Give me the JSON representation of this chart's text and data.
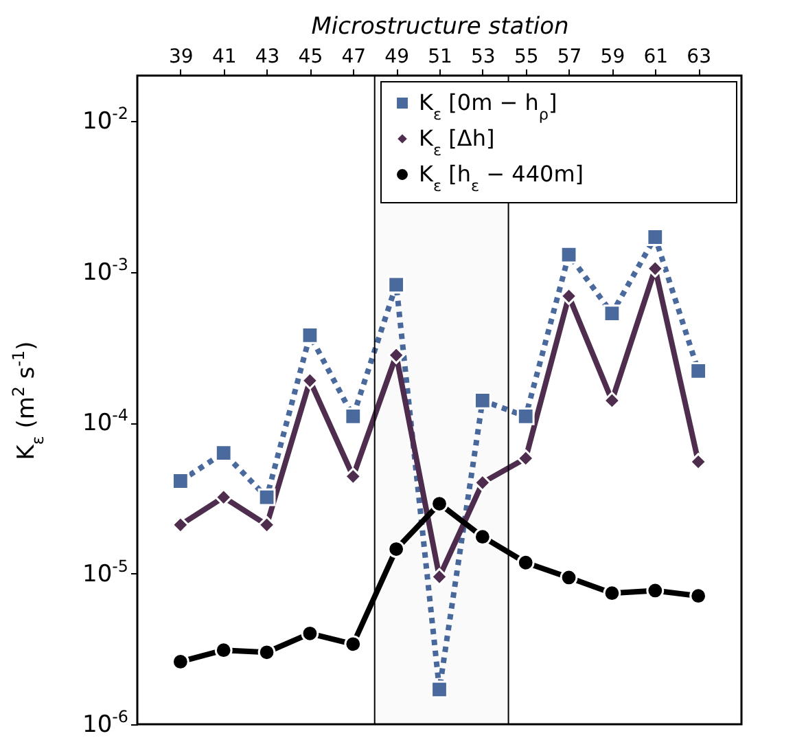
{
  "chart_data": {
    "type": "line",
    "xlabel": "Microstructure station",
    "ylabel": "K$_{ε}$ (m$^{2}$ s$^{-1}$)",
    "x": [
      39,
      41,
      43,
      45,
      47,
      49,
      51,
      53,
      55,
      57,
      59,
      61,
      63
    ],
    "xlim": [
      37,
      65
    ],
    "xticks": [
      39,
      41,
      43,
      45,
      47,
      49,
      51,
      53,
      55,
      57,
      59,
      61,
      63
    ],
    "log": true,
    "ylim": [
      1e-06,
      0.02
    ],
    "yticks": [
      {
        "value": 1e-06,
        "label": "10$^{-6}$"
      },
      {
        "value": 1e-05,
        "label": "10$^{-5}$"
      },
      {
        "value": 0.0001,
        "label": "10$^{-4}$"
      },
      {
        "value": 0.001,
        "label": "10$^{-3}$"
      },
      {
        "value": 0.01,
        "label": "10$^{-2}$"
      }
    ],
    "legend": "top right",
    "grid": false,
    "bands": [
      {
        "axis": "x",
        "from": 48,
        "to": 54.2,
        "color": "#000000"
      }
    ],
    "series": [
      {
        "name": "K$_{ε}$ [0m − h$_{ρ}$]",
        "color": "#4a6a9e",
        "marker": "square",
        "line_style": "dotted",
        "values": [
          4.1e-05,
          6.3e-05,
          3.2e-05,
          0.00038,
          0.00011,
          0.00082,
          1.7e-06,
          0.00014,
          0.00011,
          0.0013,
          0.00053,
          0.0017,
          0.00022
        ]
      },
      {
        "name": "K$_{ε}$ [Δh]",
        "color": "#4f2d4f",
        "marker": "diamond",
        "line_style": "solid",
        "values": [
          2.1e-05,
          3.2e-05,
          2.1e-05,
          0.00019,
          4.4e-05,
          0.00028,
          9.5e-06,
          4e-05,
          5.8e-05,
          0.00069,
          0.00014,
          0.00105,
          5.5e-05
        ]
      },
      {
        "name": "K$_{ε}$ [h$_{ε}$ − 440m]",
        "color": "#000000",
        "marker": "circle",
        "line_style": "solid",
        "values": [
          2.6e-06,
          3.1e-06,
          3e-06,
          4e-06,
          3.4e-06,
          1.45e-05,
          2.9e-05,
          1.75e-05,
          1.18e-05,
          9.4e-06,
          7.4e-06,
          7.7e-06,
          7.1e-06
        ]
      }
    ]
  }
}
